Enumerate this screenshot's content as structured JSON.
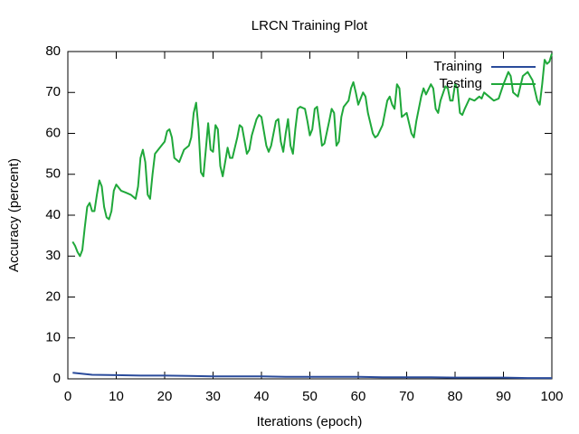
{
  "chart_data": {
    "type": "line",
    "title": "LRCN Training Plot",
    "x_label": "Iterations (epoch)",
    "y_label": "Accuracy (percent)",
    "xlim": [
      0,
      100
    ],
    "ylim": [
      0,
      80
    ],
    "xticks": [
      0,
      10,
      20,
      30,
      40,
      50,
      60,
      70,
      80,
      90,
      100
    ],
    "yticks": [
      0,
      10,
      20,
      30,
      40,
      50,
      60,
      70,
      80
    ],
    "legend": "upper right",
    "series": [
      {
        "name": "Training",
        "color": "#2a4b9b",
        "x": [
          1,
          5,
          10,
          15,
          20,
          25,
          30,
          35,
          40,
          45,
          50,
          55,
          60,
          65,
          70,
          75,
          80,
          85,
          90,
          95,
          100
        ],
        "values": [
          1.5,
          1.0,
          0.9,
          0.8,
          0.8,
          0.7,
          0.6,
          0.6,
          0.6,
          0.5,
          0.5,
          0.5,
          0.5,
          0.4,
          0.4,
          0.4,
          0.3,
          0.3,
          0.3,
          0.2,
          0.2
        ]
      },
      {
        "name": "Testing",
        "color": "#1fa83a",
        "x": [
          1,
          1.5,
          2,
          2.5,
          3,
          3.5,
          4,
          4.5,
          5,
          5.5,
          6,
          6.5,
          7,
          7.5,
          8,
          8.5,
          9,
          9.5,
          10,
          11,
          12,
          13,
          14,
          14.5,
          15,
          15.5,
          16,
          16.5,
          17,
          17.5,
          18,
          19,
          20,
          20.5,
          21,
          21.5,
          22,
          23,
          24,
          25,
          25.5,
          26,
          26.5,
          27,
          27.5,
          28,
          28.5,
          29,
          29.5,
          30,
          30.5,
          31,
          31.5,
          32,
          32.5,
          33,
          33.5,
          34,
          35,
          35.5,
          36,
          37,
          37.5,
          38,
          39,
          39.5,
          40,
          41,
          41.5,
          42,
          43,
          43.5,
          44,
          44.5,
          45,
          45.5,
          46,
          46.5,
          47,
          47.5,
          48,
          49,
          49.5,
          50,
          50.5,
          51,
          51.5,
          52,
          52.5,
          53,
          54,
          54.5,
          55,
          55.5,
          56,
          56.5,
          57,
          58,
          58.5,
          59,
          59.5,
          60,
          61,
          61.5,
          62,
          63,
          63.5,
          64,
          65,
          66,
          66.5,
          67,
          67.5,
          68,
          68.5,
          69,
          70,
          71,
          71.5,
          72,
          73,
          73.5,
          74,
          75,
          75.5,
          76,
          76.5,
          77,
          78,
          78.5,
          79,
          79.5,
          80,
          80.5,
          81,
          81.5,
          82,
          83,
          84,
          85,
          85.5,
          86,
          87,
          88,
          89,
          90,
          91,
          91.5,
          92,
          93,
          94,
          95,
          96,
          97,
          97.5,
          98,
          98.5,
          99,
          99.5,
          100
        ],
        "values": [
          33.5,
          32.5,
          31,
          30,
          31.5,
          37,
          42,
          43,
          41,
          41,
          45,
          48.5,
          47,
          42,
          39.5,
          39,
          41,
          46,
          47.5,
          46,
          45.5,
          45,
          44,
          47,
          54,
          56,
          53,
          45,
          44,
          50,
          55,
          56.5,
          58,
          60.5,
          61,
          59,
          54,
          53,
          56,
          57,
          59,
          65,
          67.5,
          61,
          50.5,
          49.5,
          56,
          62.5,
          56,
          55.5,
          62,
          61,
          52,
          49.5,
          53,
          56.5,
          54,
          54,
          59,
          62,
          61.5,
          55,
          56,
          59.5,
          63.5,
          64.5,
          64,
          57,
          55.5,
          57,
          63,
          63.5,
          58,
          55.5,
          60,
          63.5,
          57,
          55,
          61,
          66,
          66.5,
          66,
          63,
          59.5,
          61,
          66,
          66.5,
          62,
          57,
          57.5,
          63,
          66,
          65,
          57,
          58,
          64,
          66.5,
          68,
          71,
          72.5,
          70,
          67,
          70,
          69,
          65,
          60,
          59,
          59.5,
          62,
          68,
          69,
          67,
          66,
          72,
          71,
          64,
          65,
          60,
          59,
          63,
          69,
          71,
          69.5,
          72,
          71,
          66,
          65,
          68,
          71.5,
          71,
          68,
          68,
          72,
          71,
          65,
          64.5,
          66,
          68.5,
          68,
          69,
          68.5,
          70,
          69,
          68,
          68.5,
          72,
          75,
          74,
          70,
          69,
          74,
          75,
          73,
          68,
          67,
          72,
          78,
          77,
          77.5,
          79.5
        ]
      }
    ]
  }
}
